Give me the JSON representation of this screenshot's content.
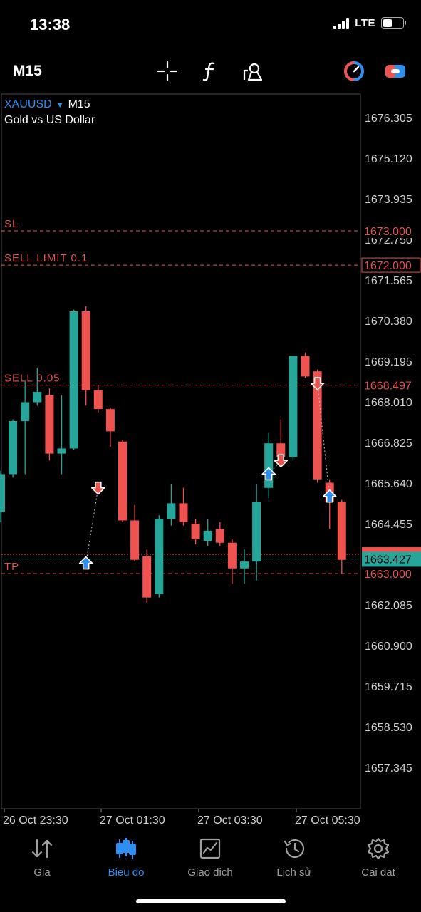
{
  "status_bar": {
    "time": "13:38",
    "network": "LTE",
    "battery": 40
  },
  "toolbar": {
    "timeframe": "M15",
    "icons": [
      "crosshair-icon",
      "function-icon",
      "objects-icon",
      "indicator-toggle-icon",
      "switch-icon"
    ]
  },
  "chart": {
    "symbol": "XAUUSD",
    "timeframe": "M15",
    "description": "Gold vs US Dollar"
  },
  "chart_data": {
    "type": "candlestick",
    "y_ticks": [
      "1676.305",
      "1675.120",
      "1673.935",
      "1672.750",
      "1671.565",
      "1670.380",
      "1669.195",
      "1668.010",
      "1666.825",
      "1665.640",
      "1664.455",
      "1662.085",
      "1660.900",
      "1659.715",
      "1658.530",
      "1657.345"
    ],
    "x_ticks": [
      "26 Oct 23:30",
      "27 Oct 01:30",
      "27 Oct 03:30",
      "27 Oct 05:30"
    ],
    "ylim": [
      1656.9,
      1677.1
    ],
    "candles": [
      {
        "o": 1664.8,
        "h": 1666.0,
        "l": 1664.5,
        "c": 1665.9
      },
      {
        "o": 1665.9,
        "h": 1667.5,
        "l": 1665.8,
        "c": 1667.45
      },
      {
        "o": 1667.45,
        "h": 1668.6,
        "l": 1665.9,
        "c": 1668.0
      },
      {
        "o": 1668.0,
        "h": 1669.0,
        "l": 1667.9,
        "c": 1668.3
      },
      {
        "o": 1668.2,
        "h": 1668.4,
        "l": 1666.3,
        "c": 1666.5
      },
      {
        "o": 1666.5,
        "h": 1668.2,
        "l": 1665.9,
        "c": 1666.65
      },
      {
        "o": 1666.65,
        "h": 1670.7,
        "l": 1666.6,
        "c": 1670.65
      },
      {
        "o": 1670.65,
        "h": 1670.8,
        "l": 1667.9,
        "c": 1668.35
      },
      {
        "o": 1668.35,
        "h": 1668.5,
        "l": 1667.7,
        "c": 1667.8
      },
      {
        "o": 1667.8,
        "h": 1667.85,
        "l": 1666.7,
        "c": 1667.15
      },
      {
        "o": 1666.85,
        "h": 1666.9,
        "l": 1664.5,
        "c": 1664.55
      },
      {
        "o": 1664.55,
        "h": 1665.0,
        "l": 1663.35,
        "c": 1663.4
      },
      {
        "o": 1663.5,
        "h": 1663.7,
        "l": 1662.15,
        "c": 1662.3
      },
      {
        "o": 1662.4,
        "h": 1664.7,
        "l": 1662.3,
        "c": 1664.6
      },
      {
        "o": 1664.6,
        "h": 1665.6,
        "l": 1664.4,
        "c": 1665.05
      },
      {
        "o": 1665.05,
        "h": 1665.5,
        "l": 1664.4,
        "c": 1664.5
      },
      {
        "o": 1664.45,
        "h": 1664.6,
        "l": 1663.85,
        "c": 1664.0
      },
      {
        "o": 1663.95,
        "h": 1664.6,
        "l": 1663.8,
        "c": 1664.25
      },
      {
        "o": 1664.3,
        "h": 1664.5,
        "l": 1663.8,
        "c": 1663.9
      },
      {
        "o": 1663.9,
        "h": 1664.0,
        "l": 1662.7,
        "c": 1663.15
      },
      {
        "o": 1663.15,
        "h": 1663.7,
        "l": 1662.7,
        "c": 1663.35
      },
      {
        "o": 1663.35,
        "h": 1665.6,
        "l": 1662.8,
        "c": 1665.1
      },
      {
        "o": 1665.5,
        "h": 1667.1,
        "l": 1665.2,
        "c": 1666.8
      },
      {
        "o": 1666.8,
        "h": 1667.5,
        "l": 1666.1,
        "c": 1666.4
      },
      {
        "o": 1666.4,
        "h": 1669.35,
        "l": 1666.3,
        "c": 1669.35
      },
      {
        "o": 1669.35,
        "h": 1669.45,
        "l": 1668.7,
        "c": 1668.75
      },
      {
        "o": 1668.9,
        "h": 1668.95,
        "l": 1665.65,
        "c": 1665.75
      },
      {
        "o": 1665.65,
        "h": 1665.75,
        "l": 1664.3,
        "c": 1665.1
      },
      {
        "o": 1665.1,
        "h": 1665.15,
        "l": 1663.0,
        "c": 1663.4
      }
    ],
    "trade_arrows": [
      {
        "index": 7,
        "dir": "buy",
        "price": 1663.3
      },
      {
        "index": 8,
        "dir": "sell",
        "price": 1665.5
      },
      {
        "index": 22,
        "dir": "buy",
        "price": 1665.9
      },
      {
        "index": 23,
        "dir": "sell",
        "price": 1666.3
      },
      {
        "index": 26,
        "dir": "sell",
        "price": 1668.55
      },
      {
        "index": 27,
        "dir": "buy",
        "price": 1665.25
      }
    ],
    "levels": [
      {
        "label": "SL",
        "price": 1673.0,
        "price_label": "1673.000",
        "boxed": false
      },
      {
        "label": "SELL LIMIT 0.1",
        "price": 1672.0,
        "price_label": "1672.000",
        "boxed": true
      },
      {
        "label": "SELL 0.05",
        "price": 1668.497,
        "price_label": "1668.497",
        "boxed": false
      },
      {
        "label": "TP",
        "price": 1663.0,
        "price_label": "1663.000",
        "boxed": false
      }
    ],
    "bid": {
      "price": 1663.427,
      "label": "1663.427"
    },
    "ask": {
      "price": 1663.56
    }
  },
  "colors": {
    "bull": "#26a69a",
    "bear": "#ef5350",
    "accent": "#2f8ff0",
    "level": "#e05252"
  },
  "tabs": [
    {
      "label": "Gia",
      "icon": "quotes-icon"
    },
    {
      "label": "Bieu do",
      "icon": "chart-icon",
      "active": true
    },
    {
      "label": "Giao dich",
      "icon": "trade-icon"
    },
    {
      "label": "Lịch sử",
      "icon": "history-icon"
    },
    {
      "label": "Cai dat",
      "icon": "settings-icon"
    }
  ]
}
